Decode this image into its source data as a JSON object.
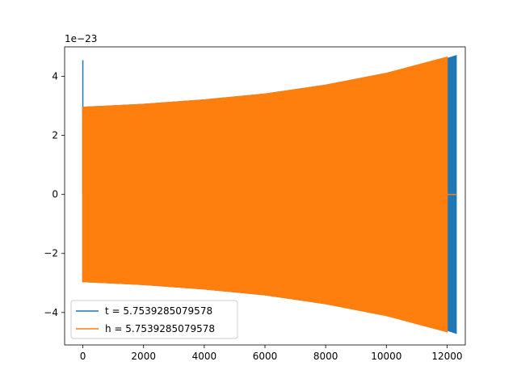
{
  "chart_data": {
    "type": "line",
    "title": "",
    "xlabel": "",
    "ylabel": "",
    "offset_text": "1e−23",
    "xlim": [
      -600,
      12600
    ],
    "ylim": [
      -5.1,
      5.0
    ],
    "x_ticks": [
      0,
      2000,
      4000,
      6000,
      8000,
      10000,
      12000
    ],
    "x_tick_labels": [
      "0",
      "2000",
      "4000",
      "6000",
      "8000",
      "10000",
      "12000"
    ],
    "y_ticks": [
      -4,
      -2,
      0,
      2,
      4
    ],
    "y_tick_labels": [
      "−4",
      "−2",
      "0",
      "2",
      "4"
    ],
    "grid": false,
    "legend_position": "lower-left",
    "series": [
      {
        "name": "t = 5.7539285079578",
        "color": "#1f77b4",
        "envelope": {
          "x": [
            0,
            2000,
            4000,
            6000,
            8000,
            10000,
            12000,
            12300
          ],
          "upper": [
            2.95,
            3.05,
            3.2,
            3.4,
            3.7,
            4.1,
            4.6,
            4.7
          ],
          "lower": [
            -2.95,
            -3.05,
            -3.2,
            -3.4,
            -3.7,
            -4.1,
            -4.6,
            -4.7
          ]
        },
        "spike": {
          "x": 0,
          "y": 4.55
        },
        "end_x": 12300
      },
      {
        "name": "h = 5.7539285079578",
        "color": "#ff7f0e",
        "envelope": {
          "x": [
            0,
            2000,
            4000,
            6000,
            8000,
            10000,
            12000
          ],
          "upper": [
            2.95,
            3.05,
            3.2,
            3.4,
            3.7,
            4.1,
            4.65
          ],
          "lower": [
            -2.95,
            -3.05,
            -3.2,
            -3.4,
            -3.7,
            -4.1,
            -4.65
          ]
        },
        "flat_tail": {
          "x": [
            12000,
            12300
          ],
          "y": 0
        },
        "end_x": 12000
      }
    ]
  }
}
